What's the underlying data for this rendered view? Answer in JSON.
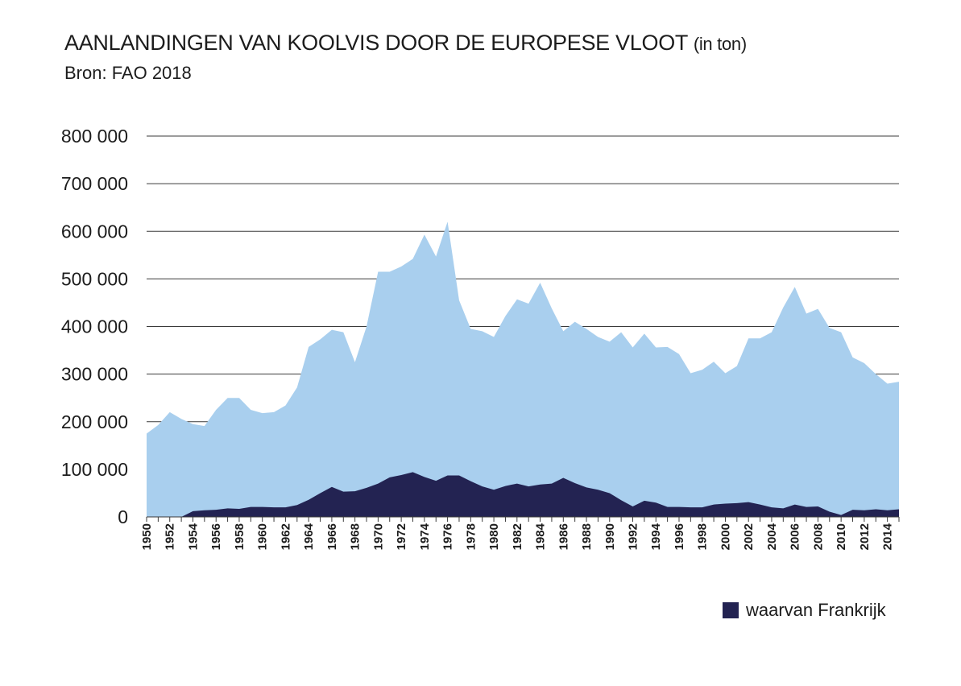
{
  "chart_data": {
    "type": "area",
    "title": "AANLANDINGEN VAN KOOLVIS DOOR DE EUROPESE VLOOT",
    "title_suffix": "(in ton)",
    "subtitle": "Bron: FAO 2018",
    "xlabel": "",
    "ylabel": "",
    "ylim": [
      0,
      800000
    ],
    "y_ticks": [
      0,
      100000,
      200000,
      300000,
      400000,
      500000,
      600000,
      700000,
      800000
    ],
    "y_tick_labels": [
      "0",
      "100 000",
      "200 000",
      "300 000",
      "400 000",
      "500 000",
      "600 000",
      "700 000",
      "800 000"
    ],
    "x_tick_labels": [
      "1950",
      "1952",
      "1954",
      "1956",
      "1958",
      "1960",
      "1962",
      "1964",
      "1966",
      "1968",
      "1970",
      "1972",
      "1974",
      "1976",
      "1978",
      "1980",
      "1982",
      "1984",
      "1986",
      "1988",
      "1990",
      "1992",
      "1994",
      "1996",
      "1998",
      "2000",
      "2002",
      "2004",
      "2006",
      "2008",
      "2010",
      "2012",
      "2014"
    ],
    "grid": true,
    "legend_position": "bottom-right",
    "x": [
      1950,
      1951,
      1952,
      1953,
      1954,
      1955,
      1956,
      1957,
      1958,
      1959,
      1960,
      1961,
      1962,
      1963,
      1964,
      1965,
      1966,
      1967,
      1968,
      1969,
      1970,
      1971,
      1972,
      1973,
      1974,
      1975,
      1976,
      1977,
      1978,
      1979,
      1980,
      1981,
      1982,
      1983,
      1984,
      1985,
      1986,
      1987,
      1988,
      1989,
      1990,
      1991,
      1992,
      1993,
      1994,
      1995,
      1996,
      1997,
      1998,
      1999,
      2000,
      2001,
      2002,
      2003,
      2004,
      2005,
      2006,
      2007,
      2008,
      2009,
      2010,
      2011,
      2012,
      2013,
      2014,
      2015
    ],
    "series": [
      {
        "color": "#a9cfee",
        "values": [
          175000,
          193000,
          220000,
          206000,
          195000,
          191000,
          225000,
          250000,
          250000,
          225000,
          218000,
          220000,
          234000,
          272000,
          357000,
          373000,
          393000,
          388000,
          325000,
          400000,
          515000,
          515000,
          526000,
          542000,
          593000,
          547000,
          620000,
          455000,
          395000,
          390000,
          378000,
          422000,
          457000,
          448000,
          492000,
          438000,
          390000,
          410000,
          395000,
          378000,
          368000,
          388000,
          356000,
          385000,
          356000,
          357000,
          342000,
          302000,
          309000,
          326000,
          302000,
          317000,
          375000,
          375000,
          388000,
          440000,
          483000,
          427000,
          437000,
          397000,
          388000,
          335000,
          323000,
          300000,
          280000,
          284000
        ]
      },
      {
        "name": "waarvan Frankrijk",
        "color": "#232352",
        "values": [
          0,
          0,
          0,
          0,
          12000,
          14000,
          15000,
          18000,
          17000,
          21000,
          21000,
          20000,
          20000,
          25000,
          36000,
          50000,
          63000,
          53000,
          54000,
          61000,
          70000,
          83000,
          88000,
          94000,
          84000,
          76000,
          87000,
          87000,
          75000,
          64000,
          57000,
          65000,
          70000,
          64000,
          68000,
          70000,
          82000,
          71000,
          62000,
          57000,
          50000,
          35000,
          22000,
          34000,
          30000,
          21000,
          21000,
          20000,
          20000,
          26000,
          28000,
          29000,
          31000,
          26000,
          20000,
          18000,
          26000,
          21000,
          22000,
          11000,
          4000,
          15000,
          14000,
          16000,
          14000,
          16000
        ]
      }
    ]
  }
}
